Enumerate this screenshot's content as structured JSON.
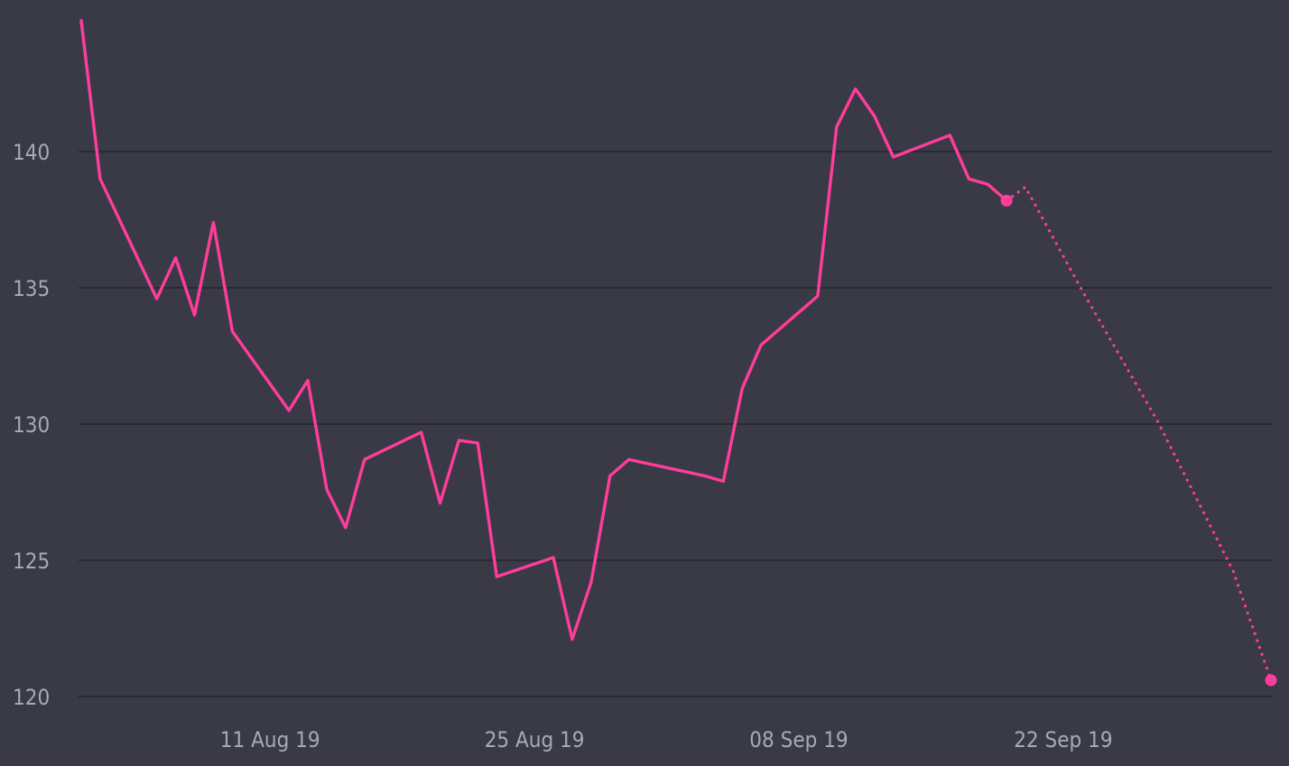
{
  "chart_data": {
    "type": "line",
    "title": "",
    "xlabel": "",
    "ylabel": "",
    "grid": true,
    "legend": "none",
    "colors": {
      "background": "#3a3a46",
      "line": "#ff3d9a",
      "grid": "#25252d",
      "tick_label": "#a9a9b6"
    },
    "xlim": [
      "2019-08-01",
      "2019-10-03"
    ],
    "ylim": [
      120,
      145
    ],
    "y_ticks": [
      {
        "value": 120,
        "label": "120"
      },
      {
        "value": 125,
        "label": "125"
      },
      {
        "value": 130,
        "label": "130"
      },
      {
        "value": 135,
        "label": "135"
      },
      {
        "value": 140,
        "label": "140"
      }
    ],
    "x_ticks": [
      {
        "date": "2019-08-11",
        "label": "11 Aug 19"
      },
      {
        "date": "2019-08-25",
        "label": "25 Aug 19"
      },
      {
        "date": "2019-09-08",
        "label": "08 Sep 19"
      },
      {
        "date": "2019-09-22",
        "label": "22 Sep 19"
      }
    ],
    "series": [
      {
        "style": "solid",
        "points": [
          {
            "date": "2019-08-01",
            "value": 144.8
          },
          {
            "date": "2019-08-02",
            "value": 139.0
          },
          {
            "date": "2019-08-05",
            "value": 134.6
          },
          {
            "date": "2019-08-06",
            "value": 136.1
          },
          {
            "date": "2019-08-07",
            "value": 134.0
          },
          {
            "date": "2019-08-08",
            "value": 137.4
          },
          {
            "date": "2019-08-09",
            "value": 133.4
          },
          {
            "date": "2019-08-12",
            "value": 130.5
          },
          {
            "date": "2019-08-13",
            "value": 131.6
          },
          {
            "date": "2019-08-14",
            "value": 127.6
          },
          {
            "date": "2019-08-15",
            "value": 126.2
          },
          {
            "date": "2019-08-16",
            "value": 128.7
          },
          {
            "date": "2019-08-19",
            "value": 129.7
          },
          {
            "date": "2019-08-20",
            "value": 127.1
          },
          {
            "date": "2019-08-21",
            "value": 129.4
          },
          {
            "date": "2019-08-22",
            "value": 129.3
          },
          {
            "date": "2019-08-23",
            "value": 124.4
          },
          {
            "date": "2019-08-26",
            "value": 125.1
          },
          {
            "date": "2019-08-27",
            "value": 122.1
          },
          {
            "date": "2019-08-28",
            "value": 124.2
          },
          {
            "date": "2019-08-29",
            "value": 128.1
          },
          {
            "date": "2019-08-30",
            "value": 128.7
          },
          {
            "date": "2019-09-03",
            "value": 128.1
          },
          {
            "date": "2019-09-04",
            "value": 127.9
          },
          {
            "date": "2019-09-05",
            "value": 131.3
          },
          {
            "date": "2019-09-06",
            "value": 132.9
          },
          {
            "date": "2019-09-09",
            "value": 134.7
          },
          {
            "date": "2019-09-10",
            "value": 140.9
          },
          {
            "date": "2019-09-11",
            "value": 142.3
          },
          {
            "date": "2019-09-12",
            "value": 141.3
          },
          {
            "date": "2019-09-13",
            "value": 139.8
          },
          {
            "date": "2019-09-16",
            "value": 140.6
          },
          {
            "date": "2019-09-17",
            "value": 139.0
          },
          {
            "date": "2019-09-18",
            "value": 138.8
          },
          {
            "date": "2019-09-19",
            "value": 138.2
          }
        ],
        "end_marker": true
      },
      {
        "style": "dotted",
        "points": [
          {
            "date": "2019-09-19",
            "value": 138.2
          },
          {
            "date": "2019-09-20",
            "value": 138.7
          },
          {
            "date": "2019-09-23",
            "value": 134.9
          },
          {
            "date": "2019-09-27",
            "value": 130.1
          },
          {
            "date": "2019-10-01",
            "value": 124.6
          },
          {
            "date": "2019-10-03",
            "value": 120.6
          }
        ],
        "end_marker": true
      }
    ]
  }
}
